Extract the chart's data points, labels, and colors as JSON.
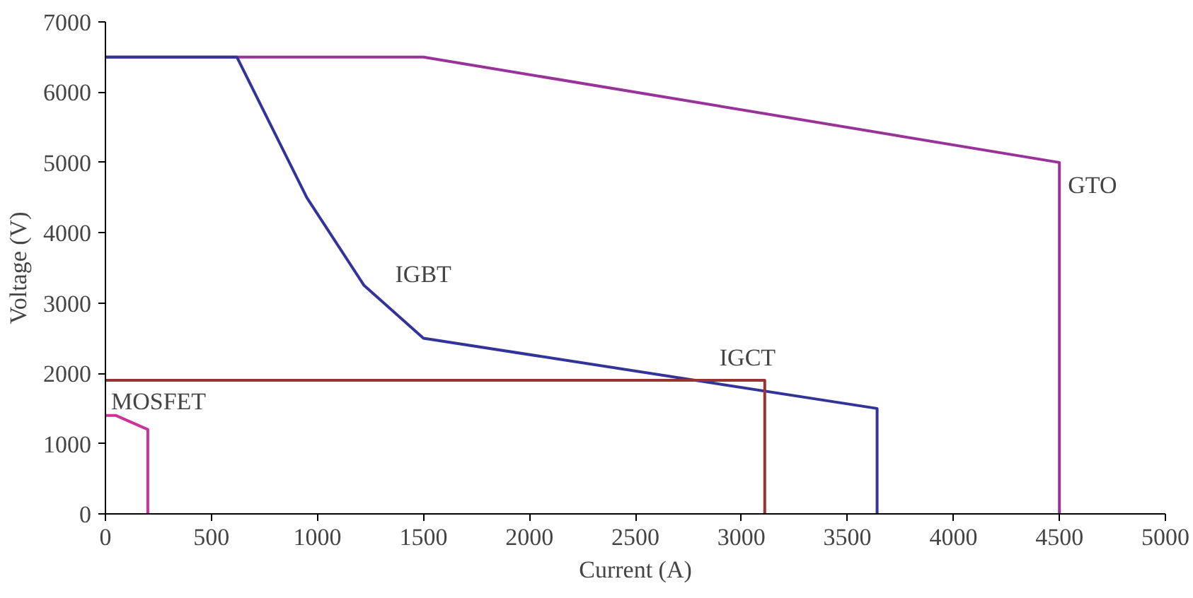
{
  "chart_data": {
    "type": "line",
    "xlabel": "Current (A)",
    "ylabel": "Voltage (V)",
    "xlim": [
      0,
      5000
    ],
    "ylim": [
      0,
      7000
    ],
    "xticks": [
      0,
      500,
      1000,
      1500,
      2000,
      2500,
      3000,
      3500,
      4000,
      4500,
      5000
    ],
    "yticks": [
      0,
      1000,
      2000,
      3000,
      4000,
      5000,
      6000,
      7000
    ],
    "grid": false,
    "legend": false,
    "series": [
      {
        "name": "GTO",
        "color": "#993399",
        "x": [
          0,
          1500,
          4500,
          4500
        ],
        "values": [
          6500,
          6500,
          5000,
          0
        ]
      },
      {
        "name": "IGBT",
        "color": "#333399",
        "x": [
          0,
          620,
          950,
          1220,
          1500,
          3640,
          3640
        ],
        "values": [
          6500,
          6500,
          4500,
          3250,
          2500,
          1500,
          0
        ]
      },
      {
        "name": "IGCT",
        "color": "#993333",
        "x": [
          0,
          3110,
          3110
        ],
        "values": [
          1900,
          1900,
          0
        ]
      },
      {
        "name": "MOSFET",
        "color": "#cc3399",
        "x": [
          0,
          50,
          200,
          200
        ],
        "values": [
          1400,
          1400,
          1200,
          0
        ]
      }
    ]
  }
}
